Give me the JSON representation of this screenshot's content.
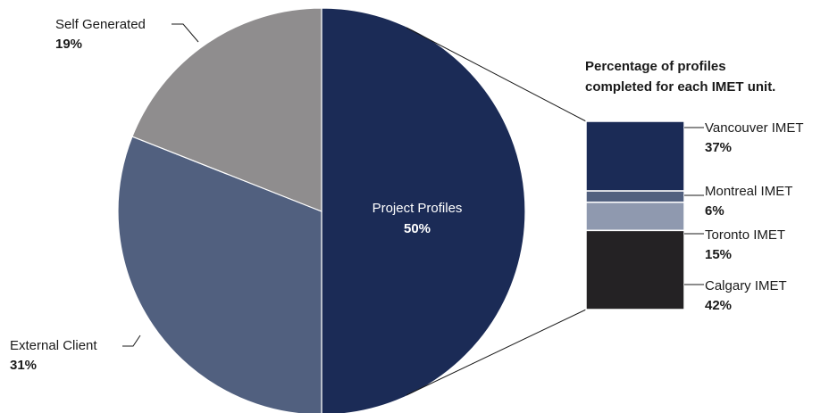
{
  "colors": {
    "project_profiles": "#1b2b56",
    "external_client": "#51607f",
    "self_generated": "#8f8d8e",
    "vancouver": "#1b2b56",
    "montreal": "#51607f",
    "toronto": "#8f99af",
    "calgary": "#242224"
  },
  "chart_data": [
    {
      "type": "pie",
      "slices": [
        {
          "key": "project_profiles",
          "label": "Project Profiles",
          "value": 50,
          "value_label": "50%"
        },
        {
          "key": "external_client",
          "label": "External Client",
          "value": 31,
          "value_label": "31%"
        },
        {
          "key": "self_generated",
          "label": "Self Generated",
          "value": 19,
          "value_label": "19%"
        }
      ]
    },
    {
      "type": "bar",
      "stacked": true,
      "title_lines": [
        "Percentage of profiles",
        "completed for each IMET unit."
      ],
      "segments": [
        {
          "key": "vancouver",
          "label": "Vancouver IMET",
          "value": 37,
          "value_label": "37%"
        },
        {
          "key": "montreal",
          "label": "Montreal IMET",
          "value": 6,
          "value_label": "6%"
        },
        {
          "key": "toronto",
          "label": "Toronto IMET",
          "value": 15,
          "value_label": "15%"
        },
        {
          "key": "calgary",
          "label": "Calgary IMET",
          "value": 42,
          "value_label": "42%"
        }
      ]
    }
  ]
}
